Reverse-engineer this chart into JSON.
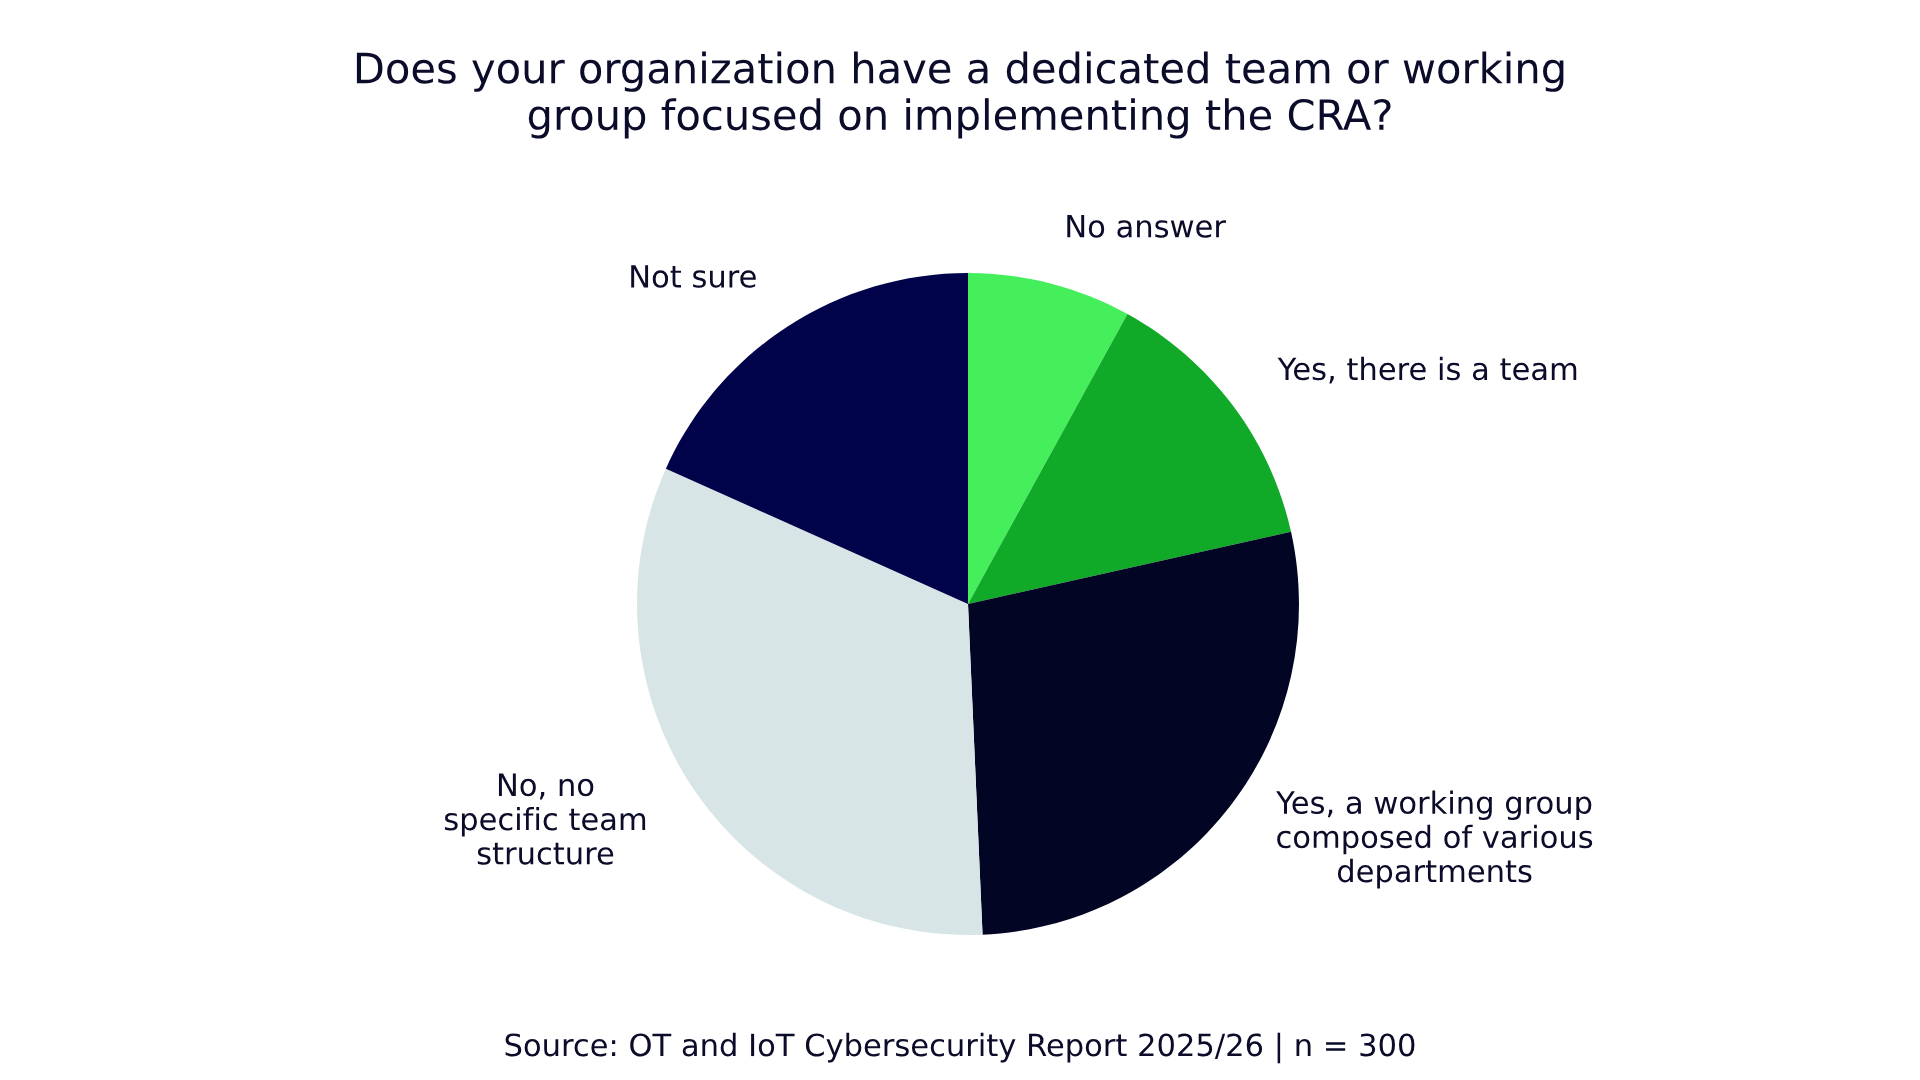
{
  "chart_data": {
    "type": "pie",
    "title": "Does your organization have a dedicated team or working\ngroup focused on implementing the CRA?",
    "categories": [
      "No answer",
      "Yes, there is a team",
      "Yes, a working group\ncomposed of various\ndepartments",
      "No, no\nspecific team\nstructure",
      "Not sure"
    ],
    "values": [
      8,
      13.5,
      27.8,
      32.4,
      18.3
    ],
    "colors": [
      "#45ef5b",
      "#10aa28",
      "#020624",
      "#d8e5e6",
      "#01034a"
    ],
    "annotations": [
      "Source: OT and IoT Cybersecurity Report 2025/26 | n = 300"
    ]
  }
}
